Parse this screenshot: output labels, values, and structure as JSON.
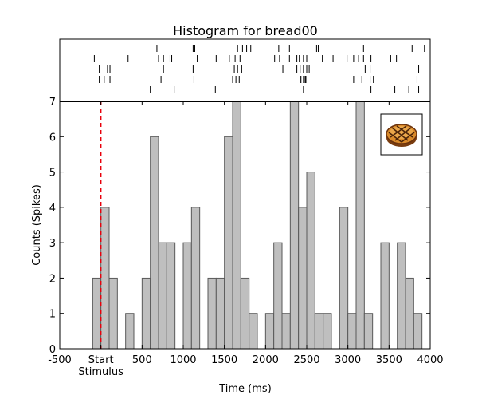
{
  "chart_data": {
    "type": "bar",
    "title": "Histogram for bread00",
    "xlabel": "Time (ms)",
    "ylabel": "Counts (Spikes)",
    "xlim": [
      -500,
      4000
    ],
    "ylim": [
      0,
      7
    ],
    "x_ticks": [
      {
        "value": -500,
        "label": "-500"
      },
      {
        "value": 0,
        "label": "Start"
      },
      {
        "value": 500,
        "label": "500"
      },
      {
        "value": 1000,
        "label": "1000"
      },
      {
        "value": 1500,
        "label": "1500"
      },
      {
        "value": 2000,
        "label": "2000"
      },
      {
        "value": 2500,
        "label": "2500"
      },
      {
        "value": 3000,
        "label": "3000"
      },
      {
        "value": 3500,
        "label": "3500"
      },
      {
        "value": 4000,
        "label": "4000"
      }
    ],
    "x_sublabel": "Stimulus",
    "y_ticks": [
      0,
      1,
      2,
      3,
      4,
      5,
      6,
      7
    ],
    "bin_width": 100,
    "bins_start": [
      -100,
      0,
      100,
      200,
      300,
      400,
      500,
      600,
      700,
      800,
      900,
      1000,
      1100,
      1200,
      1300,
      1400,
      1500,
      1600,
      1700,
      1800,
      1900,
      2000,
      2100,
      2200,
      2300,
      2400,
      2500,
      2600,
      2700,
      2800,
      2900,
      3000,
      3100,
      3200,
      3300,
      3400,
      3500,
      3600,
      3700,
      3800,
      3900
    ],
    "values": [
      2,
      4,
      2,
      0,
      1,
      0,
      2,
      6,
      3,
      3,
      0,
      3,
      4,
      0,
      2,
      2,
      6,
      7,
      2,
      1,
      0,
      1,
      3,
      1,
      7,
      4,
      5,
      1,
      1,
      0,
      4,
      1,
      7,
      1,
      0,
      3,
      0,
      3,
      2,
      1,
      0
    ],
    "stimulus_marker": {
      "x": 0,
      "style": "dashed",
      "color": "#e8000b"
    },
    "raster": {
      "xlim": [
        -500,
        4000
      ],
      "trials": [
        [
          680,
          1120,
          1140,
          1660,
          1720,
          1770,
          1820,
          2160,
          2290,
          2620,
          2640,
          3190,
          3780,
          3930
        ],
        [
          -80,
          330,
          700,
          760,
          840,
          860,
          1170,
          1400,
          1560,
          1630,
          1690,
          2110,
          2170,
          2290,
          2380,
          2410,
          2460,
          2500,
          2690,
          2820,
          2990,
          3070,
          3130,
          3190,
          3280,
          3520,
          3590
        ],
        [
          -20,
          80,
          110,
          760,
          1120,
          1620,
          1660,
          1710,
          2210,
          2380,
          2420,
          2460,
          2500,
          2530,
          3210,
          3270,
          3860
        ],
        [
          -20,
          40,
          110,
          730,
          1130,
          1600,
          1640,
          1680,
          2420,
          2430,
          2460,
          2480,
          2490,
          3070,
          3170,
          3270,
          3310,
          3840
        ],
        [
          600,
          890,
          1390,
          2460,
          3280,
          3570,
          3740,
          3860
        ]
      ]
    },
    "inset_image": "bread-roll-icon",
    "grid": false,
    "legend": "none"
  },
  "colors": {
    "bar_fill": "#bfbfbf",
    "bar_edge": "#595959",
    "stimulus": "#e8000b",
    "axis": "#000000"
  }
}
